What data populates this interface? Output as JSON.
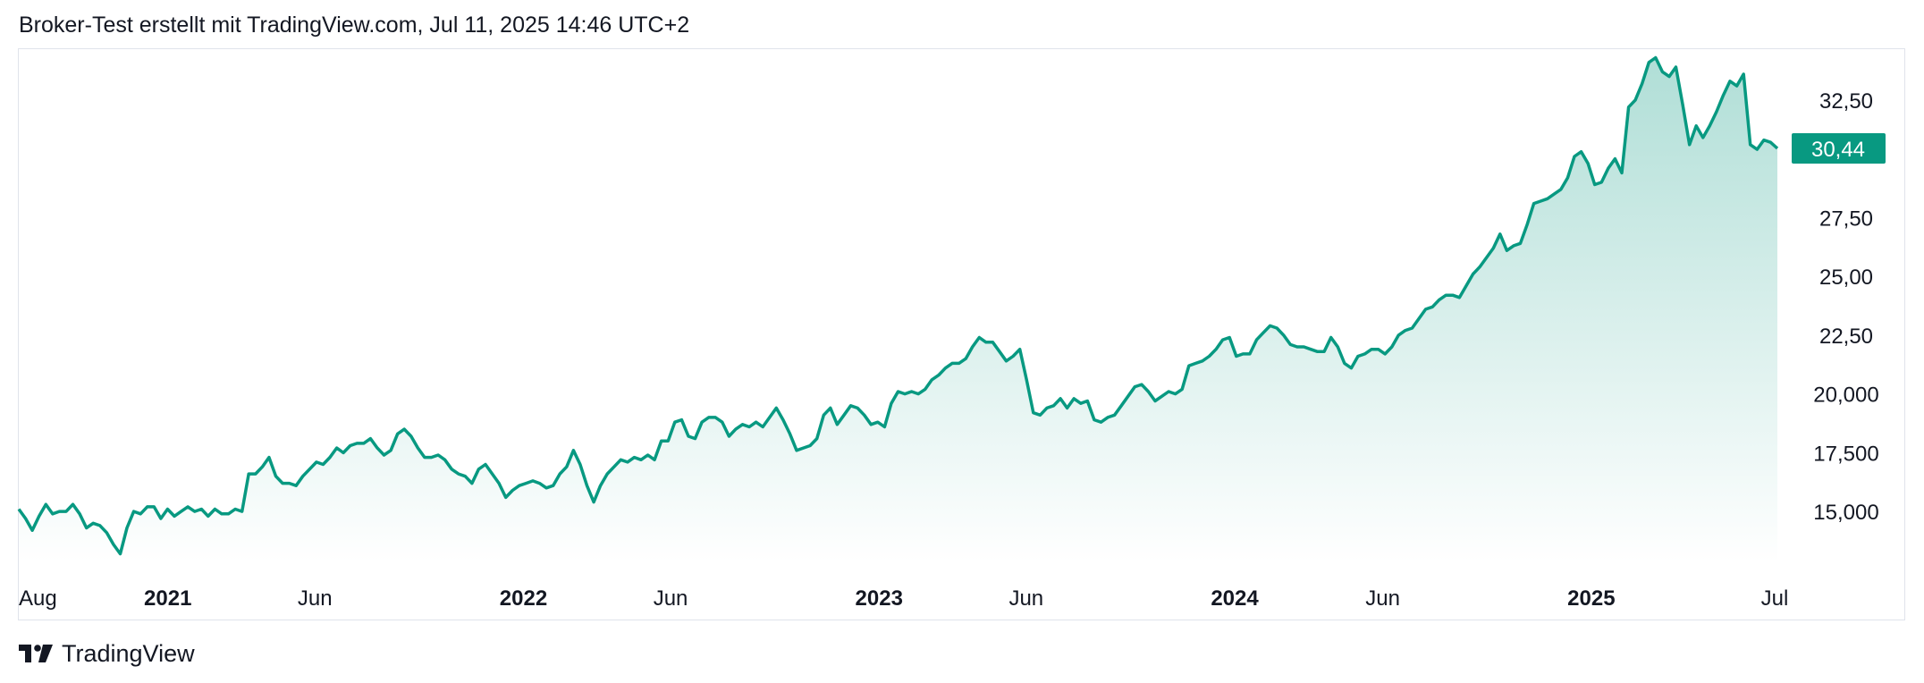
{
  "header": {
    "caption": "Broker-Test erstellt mit TradingView.com, Jul 11, 2025 14:46 UTC+2"
  },
  "footer": {
    "brand": "TradingView"
  },
  "colors": {
    "line": "#089981",
    "fill_top": "#089981",
    "price_tag_bg": "#089981",
    "text": "#131722"
  },
  "chart_data": {
    "type": "area",
    "title": "",
    "xlabel": "",
    "ylabel": "",
    "ylim": [
      12.8,
      34.7
    ],
    "y_ticks": [
      "15,000",
      "17,500",
      "20,000",
      "22,50",
      "25,00",
      "27,50",
      "32,50"
    ],
    "y_tick_values": [
      15.0,
      17.5,
      20.0,
      22.5,
      25.0,
      27.5,
      32.5
    ],
    "x_ticks": [
      {
        "label": "Aug",
        "date": "2020-08-01",
        "bold": false
      },
      {
        "label": "2021",
        "date": "2021-01-01",
        "bold": true
      },
      {
        "label": "Jun",
        "date": "2021-06-01",
        "bold": false
      },
      {
        "label": "2022",
        "date": "2022-01-01",
        "bold": true
      },
      {
        "label": "Jun",
        "date": "2022-06-01",
        "bold": false
      },
      {
        "label": "2023",
        "date": "2023-01-01",
        "bold": true
      },
      {
        "label": "Jun",
        "date": "2023-06-01",
        "bold": false
      },
      {
        "label": "2024",
        "date": "2024-01-01",
        "bold": true
      },
      {
        "label": "Jun",
        "date": "2024-06-01",
        "bold": false
      },
      {
        "label": "2025",
        "date": "2025-01-01",
        "bold": true
      },
      {
        "label": "Jul",
        "date": "2025-07-01",
        "bold": false
      }
    ],
    "last_price_label": "30,44",
    "last_price": 30.44,
    "grid": false,
    "legend": "none",
    "x_start": "2020-08-01",
    "x_end": "2025-07-11",
    "values": [
      15.1,
      14.7,
      14.2,
      14.8,
      15.3,
      14.9,
      15.0,
      15.0,
      15.3,
      14.9,
      14.3,
      14.5,
      14.4,
      14.1,
      13.6,
      13.2,
      14.3,
      15.0,
      14.9,
      15.2,
      15.2,
      14.7,
      15.1,
      14.8,
      15.0,
      15.2,
      15.0,
      15.1,
      14.8,
      15.1,
      14.9,
      14.9,
      15.1,
      15.0,
      16.6,
      16.6,
      16.9,
      17.3,
      16.5,
      16.2,
      16.2,
      16.1,
      16.5,
      16.8,
      17.1,
      17.0,
      17.3,
      17.7,
      17.5,
      17.8,
      17.9,
      17.9,
      18.1,
      17.7,
      17.4,
      17.6,
      18.3,
      18.5,
      18.2,
      17.7,
      17.3,
      17.3,
      17.4,
      17.2,
      16.8,
      16.6,
      16.5,
      16.2,
      16.8,
      17.0,
      16.6,
      16.2,
      15.6,
      15.9,
      16.1,
      16.2,
      16.3,
      16.2,
      16.0,
      16.1,
      16.6,
      16.9,
      17.6,
      17.0,
      16.1,
      15.4,
      16.1,
      16.6,
      16.9,
      17.2,
      17.1,
      17.3,
      17.2,
      17.4,
      17.2,
      18.0,
      18.0,
      18.8,
      18.9,
      18.2,
      18.1,
      18.8,
      19.0,
      19.0,
      18.8,
      18.2,
      18.5,
      18.7,
      18.6,
      18.8,
      18.6,
      19.0,
      19.4,
      18.9,
      18.3,
      17.6,
      17.7,
      17.8,
      18.1,
      19.1,
      19.4,
      18.7,
      19.1,
      19.5,
      19.4,
      19.1,
      18.7,
      18.8,
      18.6,
      19.6,
      20.1,
      20.0,
      20.1,
      20.0,
      20.2,
      20.6,
      20.8,
      21.1,
      21.3,
      21.3,
      21.5,
      22.0,
      22.4,
      22.2,
      22.2,
      21.8,
      21.4,
      21.6,
      21.9,
      20.6,
      19.2,
      19.1,
      19.4,
      19.5,
      19.8,
      19.4,
      19.8,
      19.6,
      19.7,
      18.9,
      18.8,
      19.0,
      19.1,
      19.5,
      19.9,
      20.3,
      20.4,
      20.1,
      19.7,
      19.9,
      20.1,
      20.0,
      20.2,
      21.2,
      21.3,
      21.4,
      21.6,
      21.9,
      22.3,
      22.4,
      21.6,
      21.7,
      21.7,
      22.3,
      22.6,
      22.9,
      22.8,
      22.5,
      22.1,
      22.0,
      22.0,
      21.9,
      21.8,
      21.8,
      22.4,
      22.0,
      21.3,
      21.1,
      21.6,
      21.7,
      21.9,
      21.9,
      21.7,
      22.0,
      22.5,
      22.7,
      22.8,
      23.2,
      23.6,
      23.7,
      24.0,
      24.2,
      24.2,
      24.1,
      24.6,
      25.1,
      25.4,
      25.8,
      26.2,
      26.8,
      26.1,
      26.3,
      26.4,
      27.2,
      28.1,
      28.2,
      28.3,
      28.5,
      28.7,
      29.2,
      30.1,
      30.3,
      29.8,
      28.9,
      29.0,
      29.6,
      30.0,
      29.4,
      32.2,
      32.5,
      33.2,
      34.1,
      34.3,
      33.7,
      33.5,
      33.9,
      32.3,
      30.6,
      31.4,
      30.9,
      31.4,
      32.0,
      32.7,
      33.3,
      33.1,
      33.6,
      30.6,
      30.4,
      30.8,
      30.7,
      30.44
    ]
  }
}
